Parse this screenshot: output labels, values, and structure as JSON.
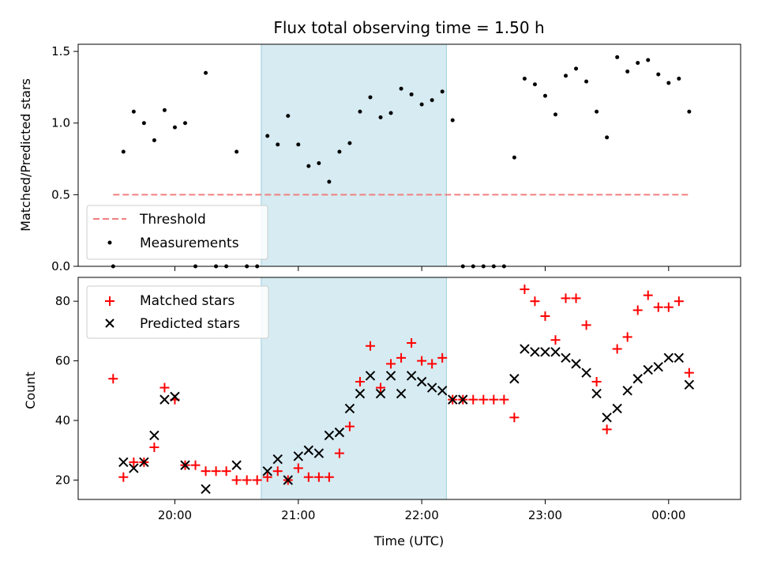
{
  "title": "Flux total observing time = 1.50 h",
  "colors": {
    "shade": "#add8e6",
    "threshold": "#f08080",
    "measurement": "#000000",
    "matched": "#ff0000",
    "predicted": "#000000"
  },
  "chart_data": [
    {
      "type": "scatter",
      "ylabel": "Matched/Predicted stars",
      "ylim": [
        0,
        1.55
      ],
      "yticks": [
        "0.0",
        "0.5",
        "1.0",
        "1.5"
      ],
      "xlim": [
        "19:13",
        "00:35"
      ],
      "shaded_span": [
        "20:42",
        "22:12"
      ],
      "legend_position": "lower-left",
      "series": [
        {
          "name": "Threshold",
          "kind": "dashed-line",
          "points": [
            [
              "19:30",
              0.5
            ],
            [
              "00:10",
              0.5
            ]
          ]
        },
        {
          "name": "Measurements",
          "kind": "dot",
          "points": [
            [
              "19:30",
              0.0
            ],
            [
              "19:35",
              0.8
            ],
            [
              "19:40",
              1.08
            ],
            [
              "19:45",
              1.0
            ],
            [
              "19:50",
              0.88
            ],
            [
              "19:55",
              1.09
            ],
            [
              "20:00",
              0.97
            ],
            [
              "20:05",
              1.0
            ],
            [
              "20:10",
              0.0
            ],
            [
              "20:15",
              1.35
            ],
            [
              "20:20",
              0.0
            ],
            [
              "20:25",
              0.0
            ],
            [
              "20:30",
              0.8
            ],
            [
              "20:35",
              0.0
            ],
            [
              "20:40",
              0.0
            ],
            [
              "20:45",
              0.91
            ],
            [
              "20:50",
              0.85
            ],
            [
              "20:55",
              1.05
            ],
            [
              "21:00",
              0.85
            ],
            [
              "21:05",
              0.7
            ],
            [
              "21:10",
              0.72
            ],
            [
              "21:15",
              0.59
            ],
            [
              "21:20",
              0.8
            ],
            [
              "21:25",
              0.86
            ],
            [
              "21:30",
              1.08
            ],
            [
              "21:35",
              1.18
            ],
            [
              "21:40",
              1.04
            ],
            [
              "21:45",
              1.07
            ],
            [
              "21:50",
              1.24
            ],
            [
              "21:55",
              1.2
            ],
            [
              "22:00",
              1.13
            ],
            [
              "22:05",
              1.16
            ],
            [
              "22:10",
              1.22
            ],
            [
              "22:15",
              1.02
            ],
            [
              "22:20",
              0.0
            ],
            [
              "22:25",
              0.0
            ],
            [
              "22:30",
              0.0
            ],
            [
              "22:35",
              0.0
            ],
            [
              "22:40",
              0.0
            ],
            [
              "22:45",
              0.76
            ],
            [
              "22:50",
              1.31
            ],
            [
              "22:55",
              1.27
            ],
            [
              "23:00",
              1.19
            ],
            [
              "23:05",
              1.06
            ],
            [
              "23:10",
              1.33
            ],
            [
              "23:15",
              1.38
            ],
            [
              "23:20",
              1.29
            ],
            [
              "23:25",
              1.08
            ],
            [
              "23:30",
              0.9
            ],
            [
              "23:35",
              1.46
            ],
            [
              "23:40",
              1.36
            ],
            [
              "23:45",
              1.42
            ],
            [
              "23:50",
              1.44
            ],
            [
              "23:55",
              1.34
            ],
            [
              "00:00",
              1.28
            ],
            [
              "00:05",
              1.31
            ],
            [
              "00:10",
              1.08
            ]
          ]
        }
      ]
    },
    {
      "type": "scatter",
      "xlabel": "Time (UTC)",
      "ylabel": "Count",
      "ylim": [
        13.5,
        88
      ],
      "yticks": [
        "20",
        "40",
        "60",
        "80"
      ],
      "xlim": [
        "19:13",
        "00:35"
      ],
      "xticks": [
        "20:00",
        "21:00",
        "22:00",
        "23:00",
        "00:00"
      ],
      "shaded_span": [
        "20:42",
        "22:12"
      ],
      "legend_position": "upper-left",
      "series": [
        {
          "name": "Matched stars",
          "kind": "plus",
          "points": [
            [
              "19:30",
              54
            ],
            [
              "19:35",
              21
            ],
            [
              "19:40",
              26
            ],
            [
              "19:45",
              26
            ],
            [
              "19:50",
              31
            ],
            [
              "19:55",
              51
            ],
            [
              "20:00",
              47
            ],
            [
              "20:05",
              25
            ],
            [
              "20:10",
              25
            ],
            [
              "20:15",
              23
            ],
            [
              "20:20",
              23
            ],
            [
              "20:25",
              23
            ],
            [
              "20:30",
              20
            ],
            [
              "20:35",
              20
            ],
            [
              "20:40",
              20
            ],
            [
              "20:45",
              21
            ],
            [
              "20:50",
              23
            ],
            [
              "20:55",
              20
            ],
            [
              "21:00",
              24
            ],
            [
              "21:05",
              21
            ],
            [
              "21:10",
              21
            ],
            [
              "21:15",
              21
            ],
            [
              "21:20",
              29
            ],
            [
              "21:25",
              38
            ],
            [
              "21:30",
              53
            ],
            [
              "21:35",
              65
            ],
            [
              "21:40",
              51
            ],
            [
              "21:45",
              59
            ],
            [
              "21:50",
              61
            ],
            [
              "21:55",
              66
            ],
            [
              "22:00",
              60
            ],
            [
              "22:05",
              59
            ],
            [
              "22:10",
              61
            ],
            [
              "22:15",
              47
            ],
            [
              "22:20",
              47
            ],
            [
              "22:25",
              47
            ],
            [
              "22:30",
              47
            ],
            [
              "22:35",
              47
            ],
            [
              "22:40",
              47
            ],
            [
              "22:45",
              41
            ],
            [
              "22:50",
              84
            ],
            [
              "22:55",
              80
            ],
            [
              "23:00",
              75
            ],
            [
              "23:05",
              67
            ],
            [
              "23:10",
              81
            ],
            [
              "23:15",
              81
            ],
            [
              "23:20",
              72
            ],
            [
              "23:25",
              53
            ],
            [
              "23:30",
              37
            ],
            [
              "23:35",
              64
            ],
            [
              "23:40",
              68
            ],
            [
              "23:45",
              77
            ],
            [
              "23:50",
              82
            ],
            [
              "23:55",
              78
            ],
            [
              "00:00",
              78
            ],
            [
              "00:05",
              80
            ],
            [
              "00:10",
              56
            ]
          ]
        },
        {
          "name": "Predicted stars",
          "kind": "x",
          "points": [
            [
              "19:35",
              26
            ],
            [
              "19:40",
              24
            ],
            [
              "19:45",
              26
            ],
            [
              "19:50",
              35
            ],
            [
              "19:55",
              47
            ],
            [
              "20:00",
              48
            ],
            [
              "20:05",
              25
            ],
            [
              "20:15",
              17
            ],
            [
              "20:30",
              25
            ],
            [
              "20:45",
              23
            ],
            [
              "20:50",
              27
            ],
            [
              "20:55",
              20
            ],
            [
              "21:00",
              28
            ],
            [
              "21:05",
              30
            ],
            [
              "21:10",
              29
            ],
            [
              "21:15",
              35
            ],
            [
              "21:20",
              36
            ],
            [
              "21:25",
              44
            ],
            [
              "21:30",
              49
            ],
            [
              "21:35",
              55
            ],
            [
              "21:40",
              49
            ],
            [
              "21:45",
              55
            ],
            [
              "21:50",
              49
            ],
            [
              "21:55",
              55
            ],
            [
              "22:00",
              53
            ],
            [
              "22:05",
              51
            ],
            [
              "22:10",
              50
            ],
            [
              "22:15",
              47
            ],
            [
              "22:20",
              47
            ],
            [
              "22:45",
              54
            ],
            [
              "22:50",
              64
            ],
            [
              "22:55",
              63
            ],
            [
              "23:00",
              63
            ],
            [
              "23:05",
              63
            ],
            [
              "23:10",
              61
            ],
            [
              "23:15",
              59
            ],
            [
              "23:20",
              56
            ],
            [
              "23:25",
              49
            ],
            [
              "23:30",
              41
            ],
            [
              "23:35",
              44
            ],
            [
              "23:40",
              50
            ],
            [
              "23:45",
              54
            ],
            [
              "23:50",
              57
            ],
            [
              "23:55",
              58
            ],
            [
              "00:00",
              61
            ],
            [
              "00:05",
              61
            ],
            [
              "00:10",
              52
            ]
          ]
        }
      ]
    }
  ]
}
